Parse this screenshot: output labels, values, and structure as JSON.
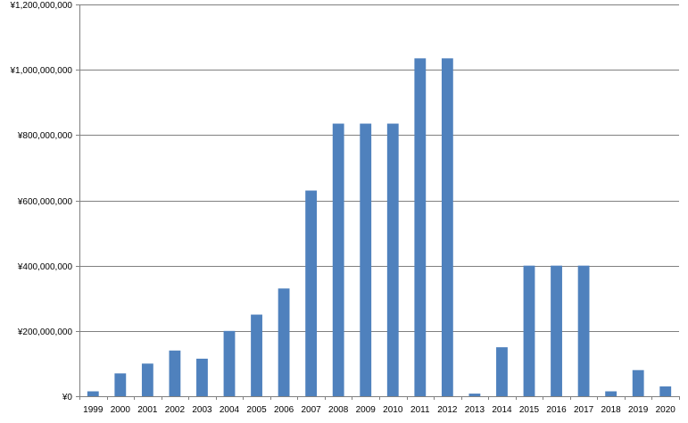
{
  "chart_data": {
    "type": "bar",
    "categories": [
      "1999",
      "2000",
      "2001",
      "2002",
      "2003",
      "2004",
      "2005",
      "2006",
      "2007",
      "2008",
      "2009",
      "2010",
      "2011",
      "2012",
      "2013",
      "2014",
      "2015",
      "2016",
      "2017",
      "2018",
      "2019",
      "2020"
    ],
    "values": [
      15000000,
      70000000,
      100000000,
      140000000,
      115000000,
      200000000,
      250000000,
      330000000,
      630000000,
      835000000,
      835000000,
      835000000,
      1035000000,
      1035000000,
      8000000,
      150000000,
      400000000,
      400000000,
      400000000,
      15000000,
      80000000,
      30000000
    ],
    "yticks": [
      "¥0",
      "¥200,000,000",
      "¥400,000,000",
      "¥600,000,000",
      "¥800,000,000",
      "¥1,000,000,000",
      "¥1,200,000,000"
    ],
    "ylim": [
      0,
      1200000000
    ],
    "grid": true,
    "bar_color": "#4f81bd",
    "gridline_color": "#808080",
    "title": "",
    "xlabel": "",
    "ylabel": ""
  }
}
